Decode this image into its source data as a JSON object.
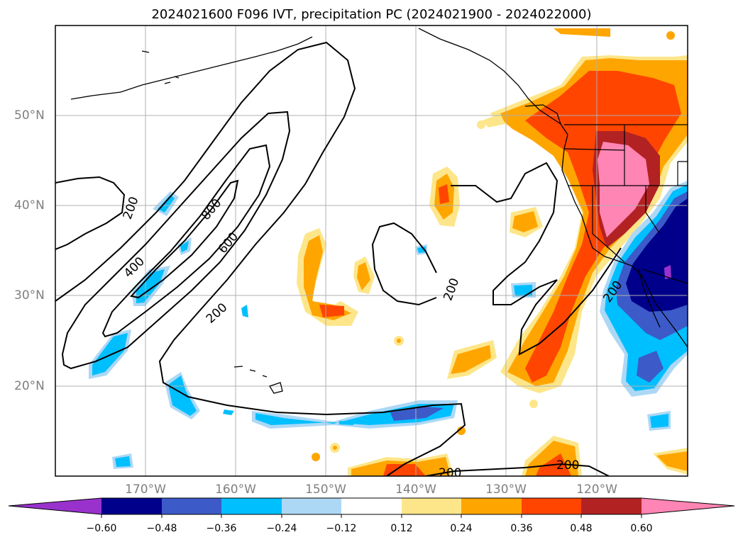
{
  "title": "2024021600 F096 IVT, precipitation PC (2024021900 - 2024022000)",
  "map": {
    "lat_labels": [
      "50°N",
      "40°N",
      "30°N",
      "20°N"
    ],
    "lon_labels": [
      "170°W",
      "160°W",
      "150°W",
      "140°W",
      "130°W",
      "120°W"
    ],
    "ivt_contour_labels": [
      "200",
      "400",
      "600",
      "800",
      "200",
      "200",
      "200",
      "200",
      "200"
    ]
  },
  "colorbar": {
    "ticks": [
      "−0.60",
      "−0.48",
      "−0.36",
      "−0.24",
      "−0.12",
      "0.12",
      "0.24",
      "0.36",
      "0.48",
      "0.60"
    ],
    "colors": [
      "#9932cc",
      "#00008b",
      "#3c5ac8",
      "#00bfff",
      "#add8f5",
      "#ffffff",
      "#fde68a",
      "#ffa500",
      "#ff4500",
      "#b22222",
      "#ff85b4"
    ]
  }
}
